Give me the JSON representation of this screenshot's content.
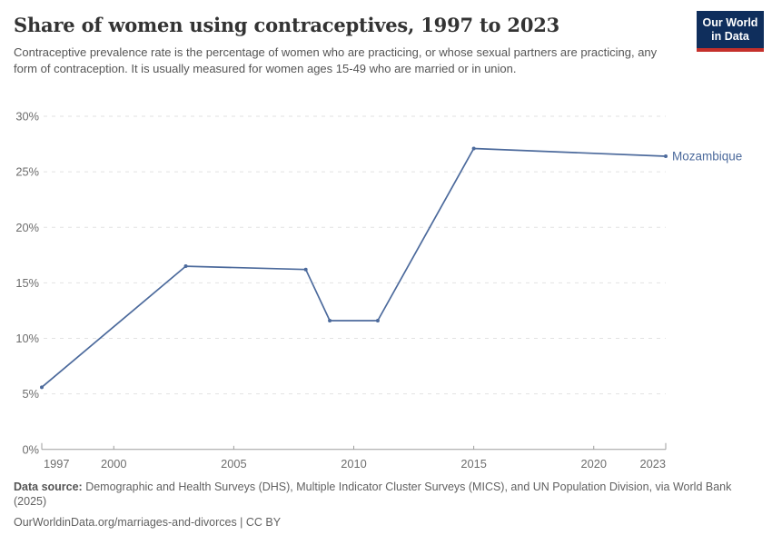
{
  "header": {
    "title": "Share of women using contraceptives, 1997 to 2023",
    "subtitle": "Contraceptive prevalence rate is the percentage of women who are practicing, or whose sexual partners are practicing, any form of contraception. It is usually measured for women ages 15-49 who are married or in union.",
    "logo": {
      "line1": "Our World",
      "line2": "in Data"
    }
  },
  "chart_data": {
    "type": "line",
    "title": "Share of women using contraceptives, 1997 to 2023",
    "xlabel": "",
    "ylabel": "",
    "x": {
      "min": 1997,
      "max": 2023,
      "ticks": [
        1997,
        2000,
        2005,
        2010,
        2015,
        2020,
        2023
      ]
    },
    "y": {
      "min": 0,
      "max": 30,
      "ticks": [
        0,
        5,
        10,
        15,
        20,
        25,
        30
      ],
      "tick_suffix": "%"
    },
    "grid": "horizontal-dashed",
    "legend_position": "end-of-line-label",
    "series": [
      {
        "name": "Mozambique",
        "color": "#4C6A9C",
        "points": [
          [
            1997,
            5.6
          ],
          [
            2003,
            16.5
          ],
          [
            2008,
            16.2
          ],
          [
            2009,
            11.6
          ],
          [
            2011,
            11.6
          ],
          [
            2015,
            27.1
          ],
          [
            2023,
            26.4
          ]
        ]
      }
    ]
  },
  "footer": {
    "source_label": "Data source:",
    "source_text": " Demographic and Health Surveys (DHS), Multiple Indicator Cluster Surveys (MICS), and UN Population Division, via World Bank (2025)",
    "link_line": "OurWorldinData.org/marriages-and-divorces | CC BY"
  },
  "colors": {
    "series_blue": "#4C6A9C",
    "logo_navy": "#0f2e5c",
    "logo_red": "#c5302b",
    "grid_gray": "#e2e2e2",
    "axis_gray": "#9e9e9e",
    "tick_label_gray": "#6d6d6d"
  }
}
